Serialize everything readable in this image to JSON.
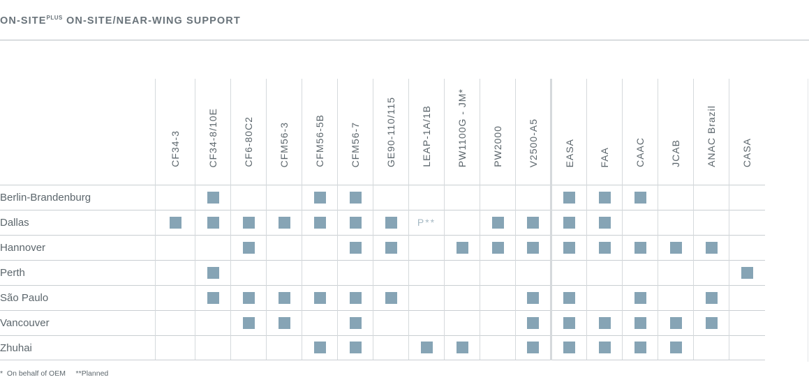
{
  "title": {
    "main": "ON-SITE",
    "superscript": "PLUS",
    "rest": " ON-SITE/NEAR-WING SUPPORT"
  },
  "columns": [
    "CF34-3",
    "CF34-8/10E",
    "CF6-80C2",
    "CFM56-3",
    "CFM56-5B",
    "CFM56-7",
    "GE90-110/115",
    "LEAP-1A/1B",
    "PW1100G - JM*",
    "PW2000",
    "V2500-A5",
    "EASA",
    "FAA",
    "CAAC",
    "JCAB",
    "ANAC Brazil",
    "CASA"
  ],
  "divider_before_column": 11,
  "rows": [
    {
      "location": "Berlin-Brandenburg",
      "cells": [
        "",
        "X",
        "",
        "",
        "X",
        "X",
        "",
        "",
        "",
        "",
        "",
        "X",
        "X",
        "X",
        "",
        "",
        ""
      ]
    },
    {
      "location": "Dallas",
      "cells": [
        "X",
        "X",
        "X",
        "X",
        "X",
        "X",
        "X",
        "P**",
        "",
        "X",
        "X",
        "X",
        "X",
        "",
        "",
        "",
        ""
      ]
    },
    {
      "location": "Hannover",
      "cells": [
        "",
        "",
        "X",
        "",
        "",
        "X",
        "X",
        "",
        "X",
        "X",
        "X",
        "X",
        "X",
        "X",
        "X",
        "X",
        ""
      ]
    },
    {
      "location": "Perth",
      "cells": [
        "",
        "X",
        "",
        "",
        "",
        "",
        "",
        "",
        "",
        "",
        "",
        "",
        "",
        "",
        "",
        "",
        "X"
      ]
    },
    {
      "location": "São Paulo",
      "cells": [
        "",
        "X",
        "X",
        "X",
        "X",
        "X",
        "X",
        "",
        "",
        "",
        "X",
        "X",
        "",
        "X",
        "",
        "X",
        ""
      ]
    },
    {
      "location": "Vancouver",
      "cells": [
        "",
        "",
        "X",
        "X",
        "",
        "X",
        "",
        "",
        "",
        "",
        "X",
        "X",
        "X",
        "X",
        "X",
        "X",
        ""
      ]
    },
    {
      "location": "Zhuhai",
      "cells": [
        "",
        "",
        "",
        "",
        "X",
        "X",
        "",
        "X",
        "X",
        "",
        "X",
        "X",
        "X",
        "X",
        "X",
        "",
        ""
      ]
    }
  ],
  "legend": {
    "mark_meaning": "X",
    "footnote": "*  On behalf of OEM     **Planned"
  },
  "colors": {
    "mark": "#86a4b5",
    "planned_text": "#a7bac5",
    "text": "#5c666c"
  }
}
